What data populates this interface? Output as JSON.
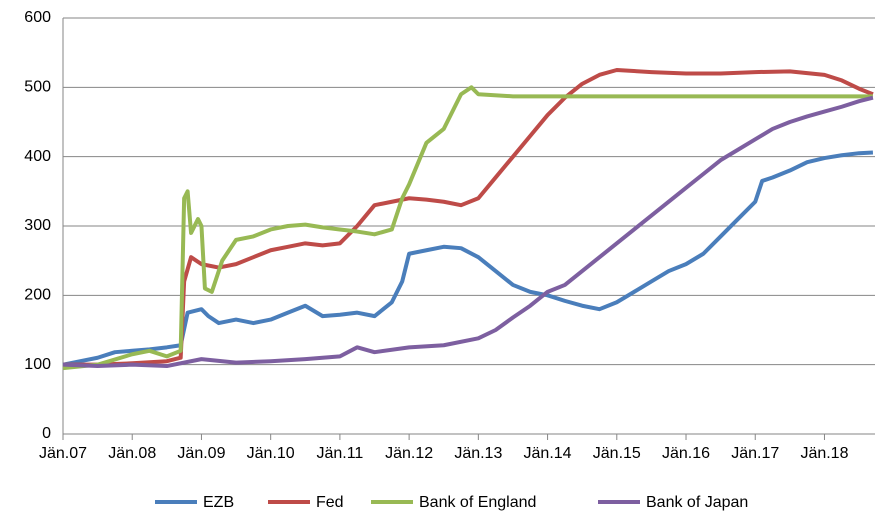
{
  "chart_data": {
    "type": "line",
    "xlim": [
      2007,
      2018.73
    ],
    "xticks": [
      {
        "value": 2007,
        "label": "Jän.07"
      },
      {
        "value": 2008,
        "label": "Jän.08"
      },
      {
        "value": 2009,
        "label": "Jän.09"
      },
      {
        "value": 2010,
        "label": "Jän.10"
      },
      {
        "value": 2011,
        "label": "Jän.11"
      },
      {
        "value": 2012,
        "label": "Jän.12"
      },
      {
        "value": 2013,
        "label": "Jän.13"
      },
      {
        "value": 2014,
        "label": "Jän.14"
      },
      {
        "value": 2015,
        "label": "Jän.15"
      },
      {
        "value": 2016,
        "label": "Jän.16"
      },
      {
        "value": 2017,
        "label": "Jän.17"
      },
      {
        "value": 2018,
        "label": "Jän.18"
      }
    ],
    "ylim": [
      0,
      600
    ],
    "yticks": [
      0,
      100,
      200,
      300,
      400,
      500,
      600
    ],
    "grid": true,
    "legend": "bottom",
    "series": [
      {
        "name": "EZB",
        "color": "#4a7ebb",
        "x": [
          2007,
          2007.25,
          2007.5,
          2007.75,
          2008,
          2008.25,
          2008.5,
          2008.7,
          2008.8,
          2009,
          2009.1,
          2009.25,
          2009.5,
          2009.75,
          2010,
          2010.25,
          2010.5,
          2010.75,
          2011,
          2011.25,
          2011.5,
          2011.75,
          2011.9,
          2012,
          2012.25,
          2012.5,
          2012.75,
          2013,
          2013.25,
          2013.5,
          2013.75,
          2014,
          2014.25,
          2014.5,
          2014.75,
          2015,
          2015.25,
          2015.5,
          2015.75,
          2016,
          2016.25,
          2016.5,
          2016.75,
          2017,
          2017.1,
          2017.25,
          2017.5,
          2017.75,
          2018,
          2018.25,
          2018.5,
          2018.7
        ],
        "values": [
          100,
          105,
          110,
          118,
          120,
          122,
          125,
          128,
          175,
          180,
          170,
          160,
          165,
          160,
          165,
          175,
          185,
          170,
          172,
          175,
          170,
          190,
          220,
          260,
          265,
          270,
          268,
          255,
          235,
          215,
          205,
          200,
          192,
          185,
          180,
          190,
          205,
          220,
          235,
          245,
          260,
          285,
          310,
          335,
          365,
          370,
          380,
          392,
          398,
          402,
          405,
          406
        ]
      },
      {
        "name": "Fed",
        "color": "#be4b48",
        "x": [
          2007,
          2007.5,
          2008,
          2008.5,
          2008.7,
          2008.75,
          2008.85,
          2009,
          2009.25,
          2009.5,
          2009.75,
          2010,
          2010.25,
          2010.5,
          2010.75,
          2011,
          2011.25,
          2011.5,
          2011.75,
          2012,
          2012.25,
          2012.5,
          2012.75,
          2013,
          2013.25,
          2013.5,
          2013.75,
          2014,
          2014.25,
          2014.5,
          2014.75,
          2015,
          2015.5,
          2016,
          2016.5,
          2017,
          2017.5,
          2018,
          2018.25,
          2018.5,
          2018.7
        ],
        "values": [
          100,
          100,
          102,
          105,
          110,
          220,
          255,
          245,
          240,
          245,
          255,
          265,
          270,
          275,
          272,
          275,
          300,
          330,
          335,
          340,
          338,
          335,
          330,
          340,
          370,
          400,
          430,
          460,
          485,
          505,
          518,
          525,
          522,
          520,
          520,
          522,
          523,
          518,
          510,
          498,
          490
        ]
      },
      {
        "name": "Bank of England",
        "color": "#98b954",
        "x": [
          2007,
          2007.5,
          2008,
          2008.25,
          2008.5,
          2008.7,
          2008.75,
          2008.8,
          2008.85,
          2008.95,
          2009,
          2009.05,
          2009.15,
          2009.3,
          2009.5,
          2009.75,
          2010,
          2010.25,
          2010.5,
          2010.75,
          2011,
          2011.25,
          2011.5,
          2011.75,
          2011.9,
          2012,
          2012.25,
          2012.5,
          2012.75,
          2012.9,
          2013,
          2013.5,
          2014,
          2015,
          2016,
          2017,
          2018,
          2018.7
        ],
        "values": [
          95,
          100,
          115,
          120,
          112,
          120,
          340,
          350,
          290,
          310,
          300,
          210,
          205,
          250,
          280,
          285,
          295,
          300,
          302,
          298,
          295,
          292,
          288,
          295,
          340,
          360,
          420,
          440,
          490,
          500,
          490,
          487,
          487,
          487,
          487,
          487,
          487,
          487
        ]
      },
      {
        "name": "Bank of Japan",
        "color": "#7d5fa0",
        "x": [
          2007,
          2007.5,
          2008,
          2008.5,
          2009,
          2009.5,
          2010,
          2010.5,
          2011,
          2011.25,
          2011.5,
          2012,
          2012.5,
          2013,
          2013.25,
          2013.5,
          2013.75,
          2014,
          2014.25,
          2014.5,
          2014.75,
          2015,
          2015.25,
          2015.5,
          2015.75,
          2016,
          2016.25,
          2016.5,
          2016.75,
          2017,
          2017.25,
          2017.5,
          2017.75,
          2018,
          2018.25,
          2018.5,
          2018.7
        ],
        "values": [
          100,
          98,
          100,
          98,
          108,
          103,
          105,
          108,
          112,
          125,
          118,
          125,
          128,
          138,
          150,
          168,
          185,
          205,
          215,
          235,
          255,
          275,
          295,
          315,
          335,
          355,
          375,
          395,
          410,
          425,
          440,
          450,
          458,
          465,
          472,
          480,
          485
        ]
      }
    ]
  }
}
